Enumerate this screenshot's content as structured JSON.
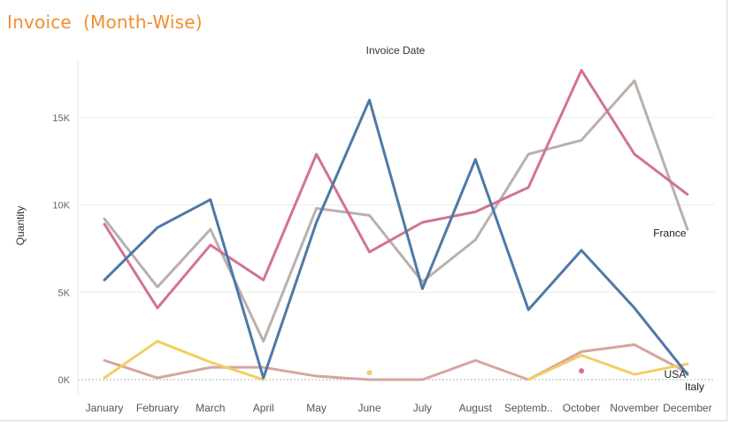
{
  "worksheet": {
    "title": "Invoice  (Month-Wise)"
  },
  "chart_data": {
    "type": "line",
    "xlabel": "Invoice Date",
    "ylabel": "Quantity",
    "categories": [
      "January",
      "February",
      "March",
      "April",
      "May",
      "June",
      "July",
      "August",
      "Septemb..",
      "October",
      "November",
      "December"
    ],
    "yticks": [
      "0K",
      "5K",
      "10K",
      "15K"
    ],
    "ylim": [
      0,
      18000
    ],
    "grid": true,
    "series": [
      {
        "color": "#4e79a7",
        "values": [
          5700,
          8700,
          10300,
          100,
          9000,
          16000,
          5200,
          12600,
          4000,
          7400,
          4100,
          300
        ]
      },
      {
        "color": "#d37295",
        "values": [
          8900,
          4100,
          7700,
          5700,
          12900,
          7300,
          9000,
          9600,
          11000,
          17700,
          12900,
          10600
        ]
      },
      {
        "color": "#bab0ac",
        "values": [
          9200,
          5300,
          8600,
          2200,
          9800,
          9400,
          5600,
          8000,
          12900,
          13700,
          17100,
          8600
        ]
      },
      {
        "name": "USA",
        "color": "#f1ce63",
        "values": [
          100,
          2200,
          1000,
          0,
          null,
          400,
          null,
          null,
          0,
          1400,
          300,
          900
        ]
      },
      {
        "name": "Italy",
        "color": "#d4a6a0",
        "values": [
          1100,
          100,
          700,
          700,
          200,
          0,
          0,
          1100,
          0,
          1600,
          2000,
          400
        ]
      }
    ],
    "isolated_points": [
      {
        "x": "October",
        "y": 500,
        "color": "#d37295"
      }
    ],
    "line_labels": [
      {
        "text": "France",
        "series_index": 1
      },
      {
        "text": "USA",
        "series_index": 3
      },
      {
        "text": "Italy",
        "series_index": 4
      }
    ]
  }
}
